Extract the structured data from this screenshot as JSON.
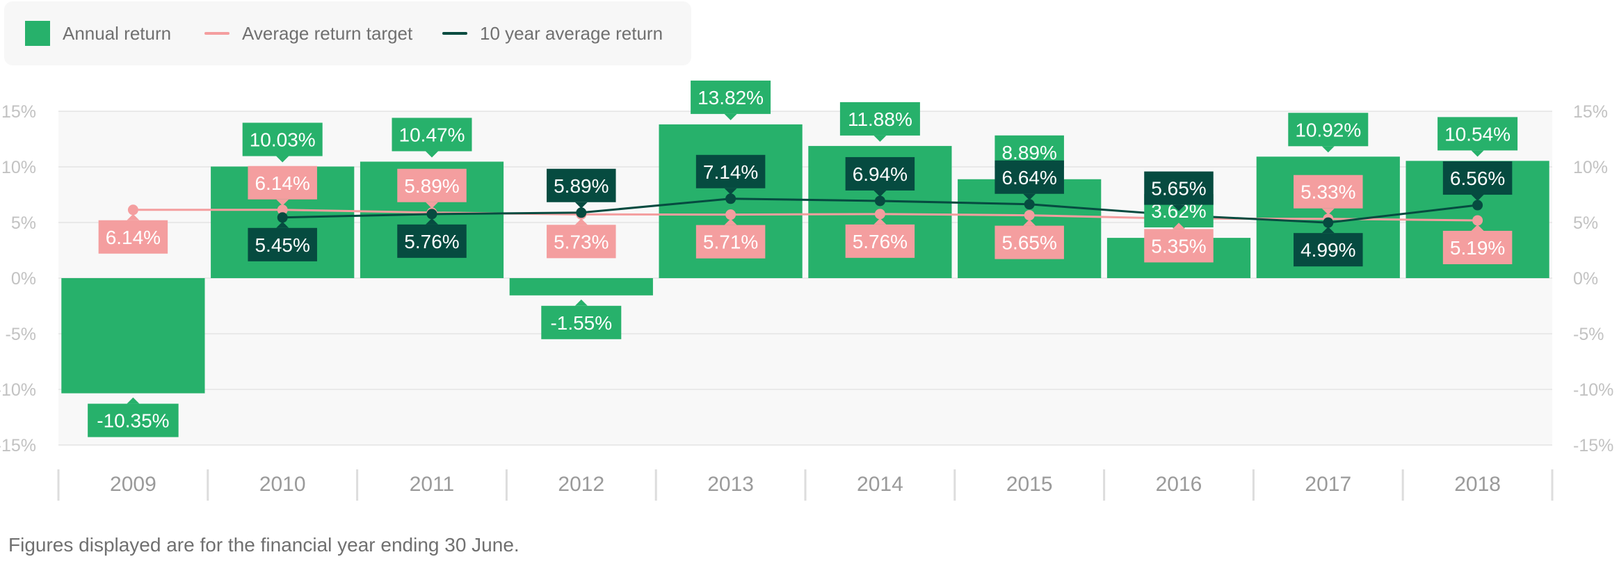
{
  "colors": {
    "annual": "#27b16b",
    "target": "#f49e9f",
    "avg10": "#064b40",
    "plot_bg": "#f8f8f8",
    "grid": "#e4e4e4",
    "axis_text": "#c2c2c2",
    "year_text": "#9a9a9a"
  },
  "legend": {
    "annual_label": "Annual return",
    "target_label": "Average return target",
    "avg10_label": "10 year average return"
  },
  "footnote": "Figures displayed are for the financial year ending 30 June.",
  "chart_data": {
    "type": "bar",
    "categories": [
      "2009",
      "2010",
      "2011",
      "2012",
      "2013",
      "2014",
      "2015",
      "2016",
      "2017",
      "2018"
    ],
    "ylim": [
      -15,
      15
    ],
    "yticks": [
      "-15%",
      "-10%",
      "-5%",
      "0%",
      "5%",
      "10%",
      "15%"
    ],
    "grid": true,
    "legend_position": "top-left",
    "series": [
      {
        "name": "Annual return",
        "type": "bar",
        "values": [
          -10.35,
          10.03,
          10.47,
          -1.55,
          13.82,
          11.88,
          8.89,
          3.62,
          10.92,
          10.54
        ],
        "labels": [
          "-10.35%",
          "10.03%",
          "10.47%",
          "-1.55%",
          "13.82%",
          "11.88%",
          "8.89%",
          "3.62%",
          "10.92%",
          "10.54%"
        ]
      },
      {
        "name": "Average return target",
        "type": "line",
        "values": [
          6.14,
          6.14,
          5.89,
          5.73,
          5.71,
          5.76,
          5.65,
          5.35,
          5.33,
          5.19
        ],
        "labels": [
          "6.14%",
          "6.14%",
          "5.89%",
          "5.73%",
          "5.71%",
          "5.76%",
          "5.65%",
          "5.35%",
          "5.33%",
          "5.19%"
        ]
      },
      {
        "name": "10 year average return",
        "type": "line",
        "x": [
          "2010",
          "2011",
          "2012",
          "2013",
          "2014",
          "2015",
          "2016",
          "2017",
          "2018"
        ],
        "values": [
          5.45,
          5.76,
          5.89,
          7.14,
          6.94,
          6.64,
          5.65,
          4.99,
          6.56
        ],
        "labels": [
          "5.45%",
          "5.76%",
          "5.89%",
          "7.14%",
          "6.94%",
          "6.64%",
          "5.65%",
          "4.99%",
          "6.56%"
        ]
      }
    ]
  }
}
